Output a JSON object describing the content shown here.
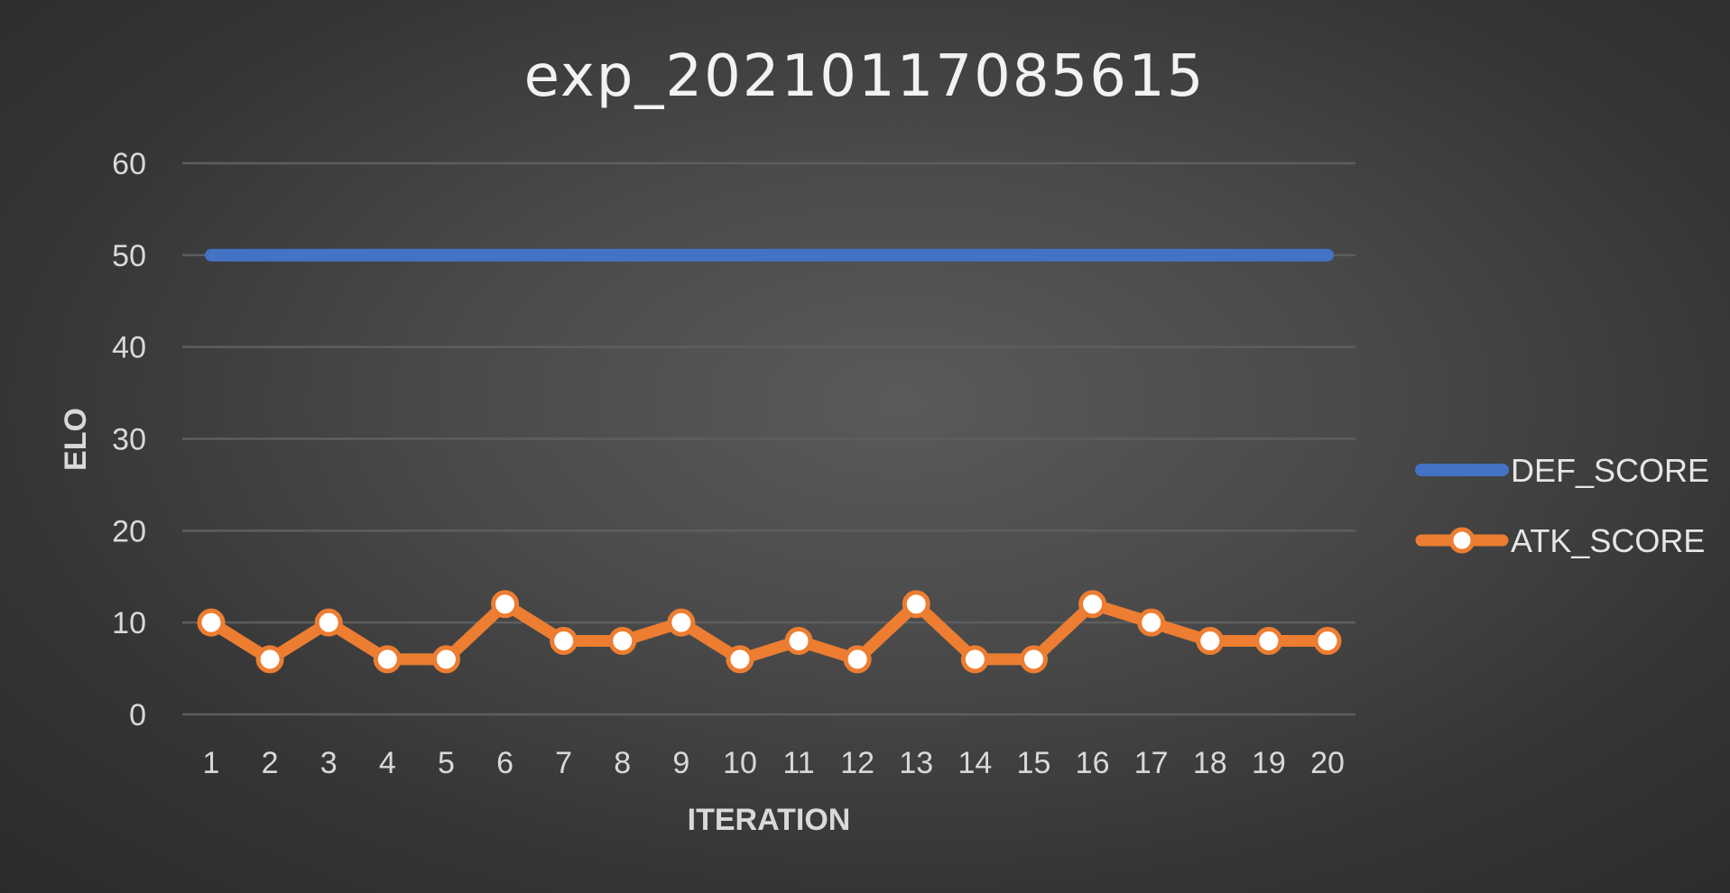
{
  "chart_data": {
    "type": "line",
    "title": "exp_20210117085615",
    "xlabel": "ITERATION",
    "ylabel": "ELO",
    "x": [
      1,
      2,
      3,
      4,
      5,
      6,
      7,
      8,
      9,
      10,
      11,
      12,
      13,
      14,
      15,
      16,
      17,
      18,
      19,
      20
    ],
    "ylim": [
      0,
      60
    ],
    "yticks": [
      0,
      10,
      20,
      30,
      40,
      50,
      60
    ],
    "grid": true,
    "legend_position": "right",
    "series": [
      {
        "name": "DEF_SCORE",
        "color": "#4472c4",
        "markers": false,
        "values": [
          50,
          50,
          50,
          50,
          50,
          50,
          50,
          50,
          50,
          50,
          50,
          50,
          50,
          50,
          50,
          50,
          50,
          50,
          50,
          50
        ]
      },
      {
        "name": "ATK_SCORE",
        "color": "#ed7d31",
        "markers": true,
        "values": [
          10,
          6,
          10,
          6,
          6,
          12,
          8,
          8,
          10,
          6,
          8,
          6,
          12,
          6,
          6,
          12,
          10,
          8,
          8,
          8
        ]
      }
    ]
  }
}
